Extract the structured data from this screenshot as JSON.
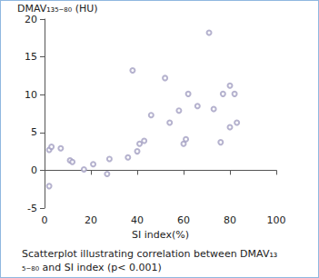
{
  "chart_data": {
    "type": "scatter",
    "y_label": "DMAV₁₃₅₋₈₀ (HU)",
    "x_label": "SI index(%)",
    "caption": "Scatterplot illustrating correlation between DMAV₁₃₅₋₈₀ and SI index (p< 0.001)",
    "x": [
      2,
      3,
      2,
      7,
      11,
      12,
      17,
      21,
      27,
      28,
      36,
      38,
      40,
      41,
      43,
      46,
      52,
      54,
      58,
      60,
      61,
      62,
      66,
      71,
      73,
      76,
      77,
      80,
      80,
      82,
      83
    ],
    "values": [
      2.7,
      3.1,
      -2.1,
      2.9,
      1.3,
      1.1,
      0.1,
      0.8,
      -0.5,
      1.5,
      1.7,
      13.2,
      2.5,
      3.5,
      3.9,
      7.3,
      12.2,
      6.3,
      7.9,
      3.5,
      4.1,
      10.1,
      8.5,
      18.2,
      8.1,
      3.7,
      10.1,
      5.7,
      11.2,
      10.1,
      6.3
    ],
    "color": "#a39fc2",
    "marker": "open circle",
    "xlim": [
      0,
      100
    ],
    "xticks": [
      0,
      20,
      40,
      60,
      80,
      100
    ],
    "ylim": [
      -5,
      20
    ],
    "yticks": [
      -5,
      0,
      5,
      10,
      15,
      20
    ],
    "grid": false
  }
}
